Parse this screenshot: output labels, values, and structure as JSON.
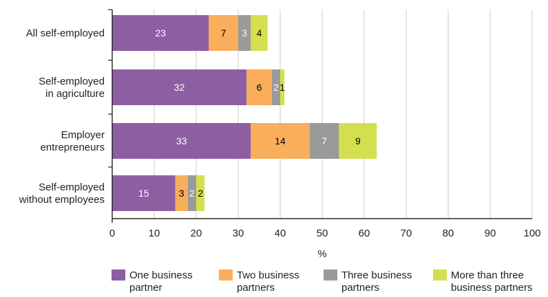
{
  "chart_data": {
    "type": "bar",
    "orientation": "horizontal",
    "stacked": true,
    "categories": [
      [
        "All self-employed"
      ],
      [
        "Self-employed",
        "in agriculture"
      ],
      [
        "Employer",
        "entrepreneurs"
      ],
      [
        "Self-employed",
        "without employees"
      ]
    ],
    "series": [
      {
        "name": [
          "One business",
          "partner"
        ],
        "color": "#8e5ea2",
        "label_color": "#ffffff",
        "values": [
          23,
          32,
          33,
          15
        ]
      },
      {
        "name": [
          "Two business",
          "partners"
        ],
        "color": "#f9ae5c",
        "label_color": "#000000",
        "values": [
          7,
          6,
          14,
          3
        ]
      },
      {
        "name": [
          "Three business",
          "partners"
        ],
        "color": "#9a9a9a",
        "label_color": "#ffffff",
        "values": [
          3,
          2,
          7,
          2
        ]
      },
      {
        "name": [
          "More than three",
          "business partners"
        ],
        "color": "#d4df4f",
        "label_color": "#000000",
        "values": [
          4,
          1,
          9,
          2
        ]
      }
    ],
    "xlabel": "%",
    "xlim": [
      0,
      100
    ],
    "xticks": [
      0,
      10,
      20,
      30,
      40,
      50,
      60,
      70,
      80,
      90,
      100
    ],
    "grid": "vertical",
    "legend_position": "bottom"
  }
}
